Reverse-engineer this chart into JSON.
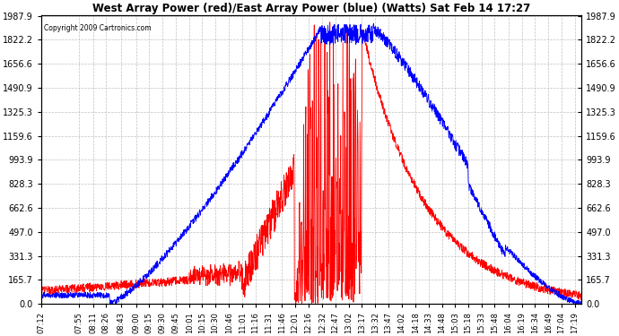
{
  "title": "West Array Power (red)/East Array Power (blue) (Watts) Sat Feb 14 17:27",
  "copyright": "Copyright 2009 Cartronics.com",
  "background_color": "#ffffff",
  "plot_bg_color": "#ffffff",
  "grid_color": "#c0c0c0",
  "red_color": "#ff0000",
  "blue_color": "#0000ff",
  "yticks": [
    0.0,
    165.7,
    331.3,
    497.0,
    662.6,
    828.3,
    993.9,
    1159.6,
    1325.3,
    1490.9,
    1656.6,
    1822.2,
    1987.9
  ],
  "ymax": 1987.9,
  "ymin": 0.0,
  "xtick_labels": [
    "07:12",
    "07:55",
    "08:11",
    "08:26",
    "08:43",
    "09:00",
    "09:15",
    "09:30",
    "09:45",
    "10:01",
    "10:15",
    "10:30",
    "10:46",
    "11:01",
    "11:16",
    "11:31",
    "11:46",
    "12:01",
    "12:16",
    "12:32",
    "12:47",
    "13:02",
    "13:17",
    "13:32",
    "13:47",
    "14:02",
    "14:18",
    "14:33",
    "14:48",
    "15:03",
    "15:18",
    "15:33",
    "15:48",
    "16:04",
    "16:19",
    "16:34",
    "16:49",
    "17:04",
    "17:19"
  ]
}
